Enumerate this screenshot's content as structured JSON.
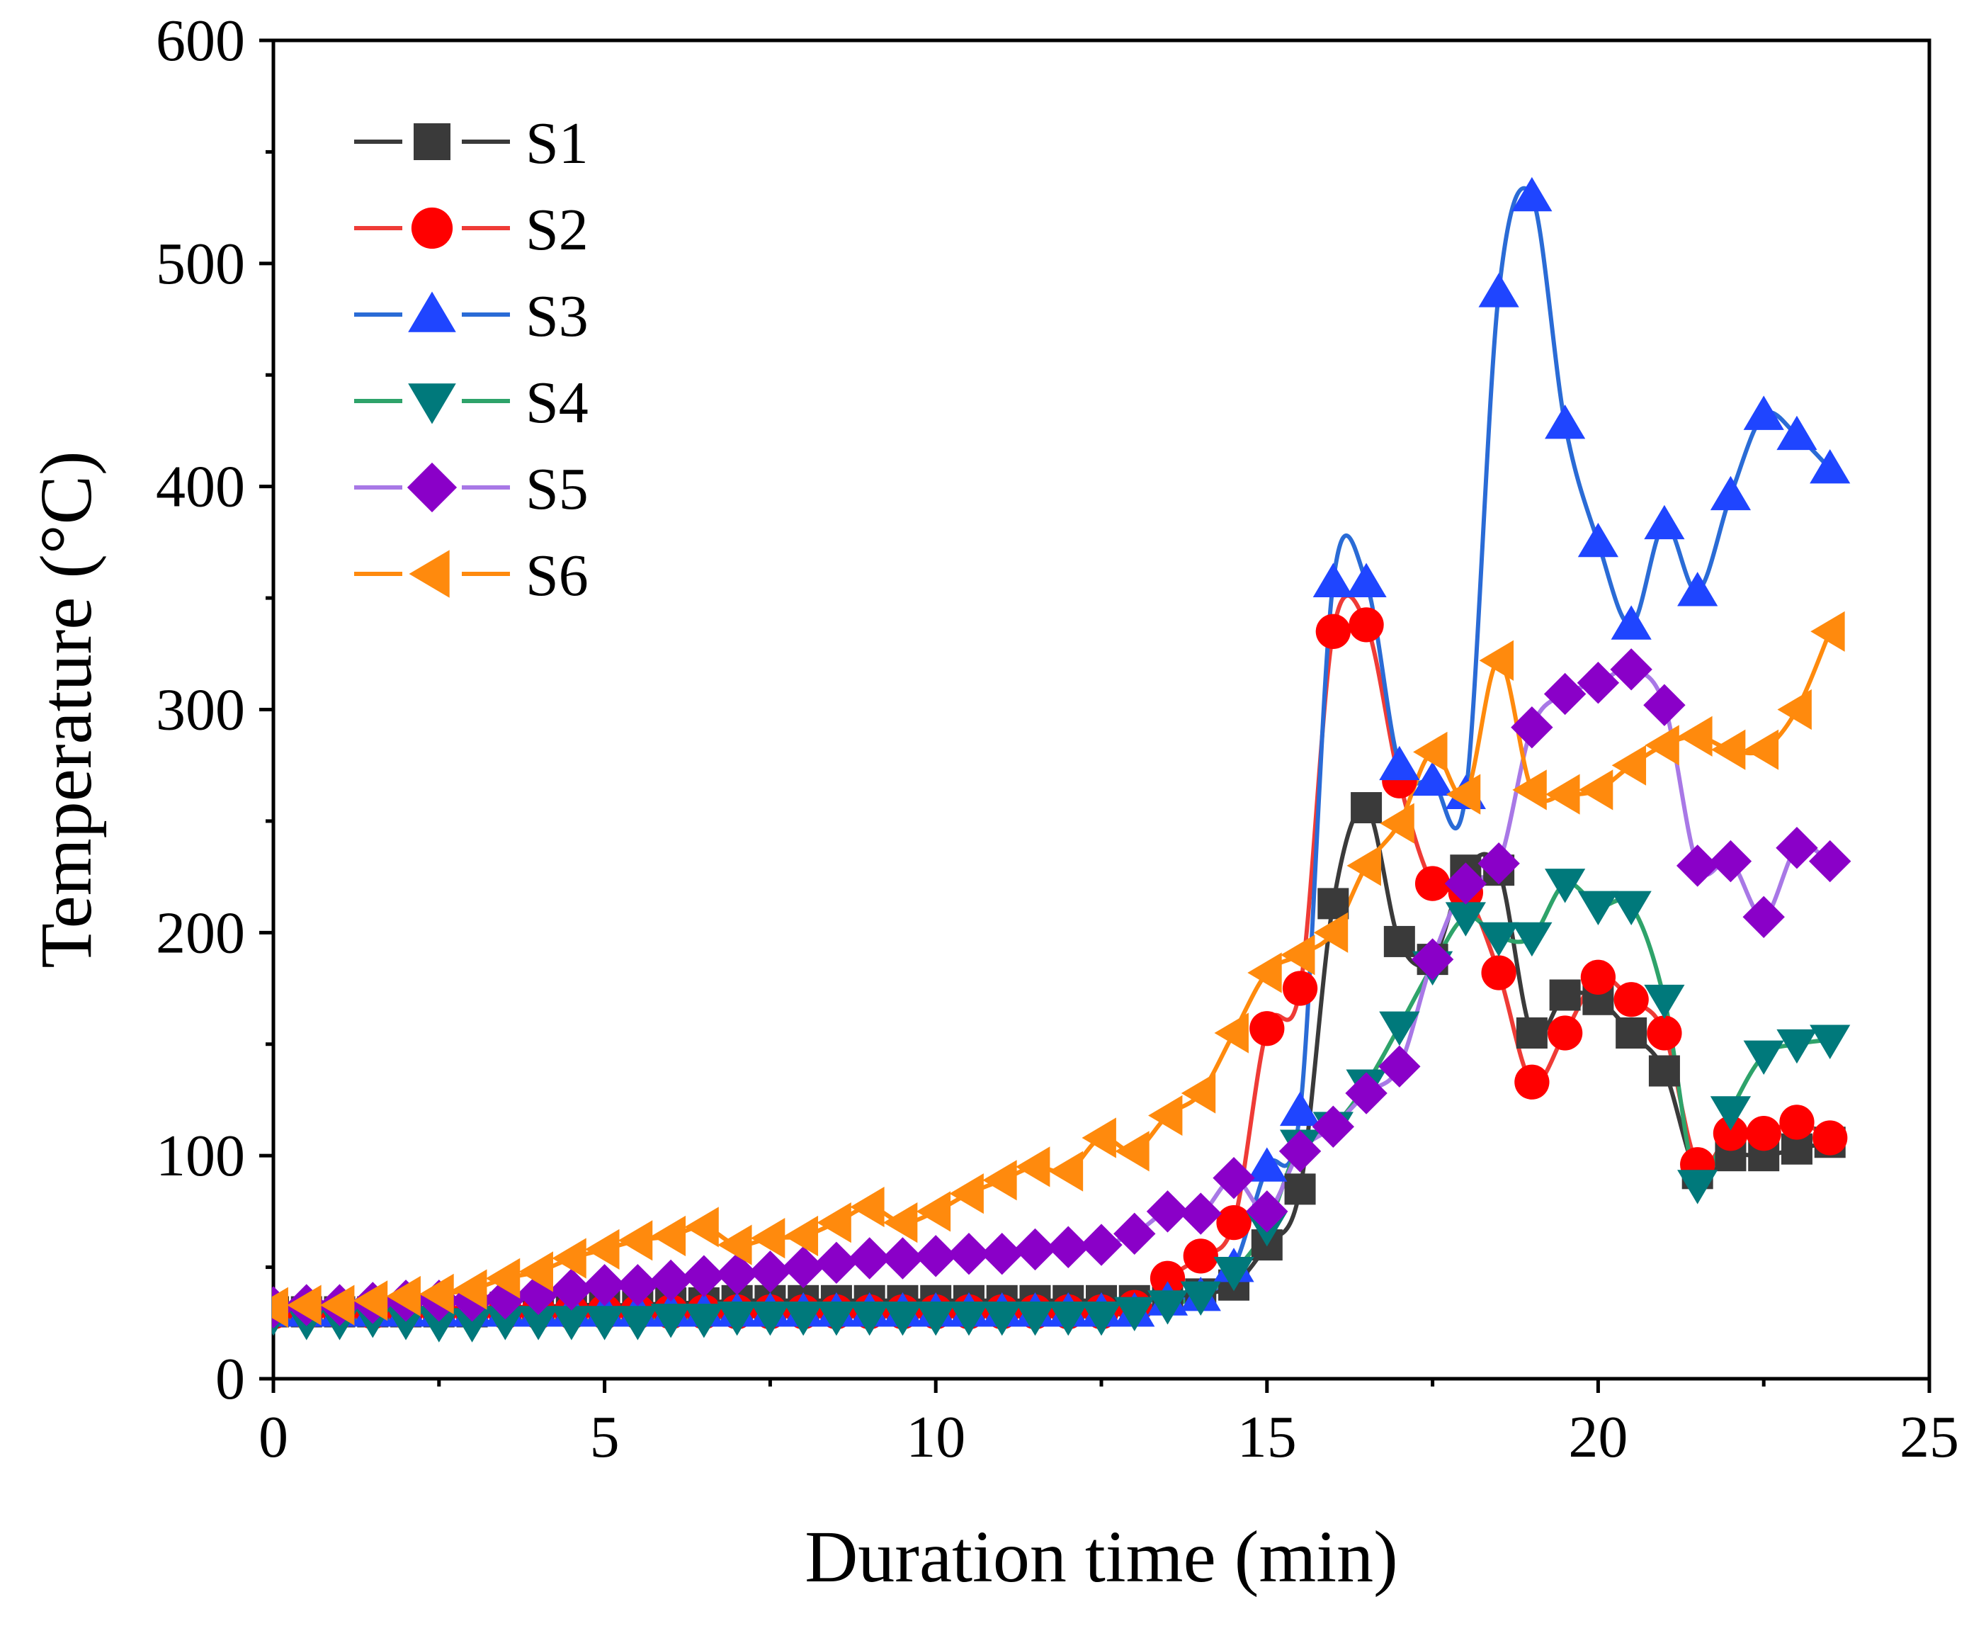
{
  "chart_data": {
    "type": "line",
    "xlabel": "Duration time (min)",
    "ylabel": "Temperature (°C)",
    "xlim": [
      0,
      25
    ],
    "ylim": [
      0,
      600
    ],
    "xticks": [
      0,
      5,
      10,
      15,
      20,
      25
    ],
    "yticks": [
      0,
      100,
      200,
      300,
      400,
      500,
      600
    ],
    "xtick_labels": [
      "0",
      "5",
      "10",
      "15",
      "20",
      "25"
    ],
    "ytick_labels": [
      "0",
      "100",
      "200",
      "300",
      "400",
      "500",
      "600"
    ],
    "legend_position": "top-left",
    "grid": false,
    "series": [
      {
        "name": "S1",
        "color": "#3a3a3a",
        "marker": "square",
        "x": [
          0,
          0.5,
          1,
          1.5,
          2,
          2.5,
          3,
          3.5,
          4,
          4.5,
          5,
          5.5,
          6,
          6.5,
          7,
          7.5,
          8,
          8.5,
          9,
          9.5,
          10,
          10.5,
          11,
          11.5,
          12,
          12.5,
          13,
          13.5,
          14,
          14.5,
          15,
          15.5,
          16,
          16.5,
          17,
          17.5,
          18,
          18.5,
          19,
          19.5,
          20,
          20.5,
          21,
          21.5,
          22,
          22.5,
          23,
          23.5
        ],
        "y": [
          30,
          30,
          30,
          30,
          30,
          30,
          30,
          32,
          32,
          33,
          33,
          33,
          34,
          34,
          35,
          35,
          35,
          35,
          35,
          35,
          35,
          35,
          35,
          35,
          35,
          35,
          35,
          36,
          38,
          42,
          60,
          85,
          213,
          256,
          196,
          188,
          228,
          228,
          155,
          172,
          170,
          155,
          138,
          92,
          100,
          100,
          103,
          106
        ]
      },
      {
        "name": "S2",
        "color": "#ff0000",
        "marker": "circle",
        "x": [
          0,
          0.5,
          1,
          1.5,
          2,
          2.5,
          3,
          3.5,
          4,
          4.5,
          5,
          5.5,
          6,
          6.5,
          7,
          7.5,
          8,
          8.5,
          9,
          9.5,
          10,
          10.5,
          11,
          11.5,
          12,
          12.5,
          13,
          13.5,
          14,
          14.5,
          15,
          15.5,
          16,
          16.5,
          17,
          17.5,
          18,
          18.5,
          19,
          19.5,
          20,
          20.5,
          21,
          21.5,
          22,
          22.5,
          23,
          23.5
        ],
        "y": [
          30,
          30,
          30,
          30,
          30,
          30,
          30,
          30,
          30,
          30,
          30,
          30,
          30,
          30,
          30,
          30,
          30,
          30,
          30,
          30,
          30,
          30,
          30,
          30,
          30,
          30,
          32,
          45,
          55,
          70,
          157,
          175,
          335,
          338,
          268,
          222,
          218,
          182,
          133,
          155,
          180,
          170,
          155,
          96,
          110,
          110,
          115,
          108
        ]
      },
      {
        "name": "S3",
        "color": "#1f45ff",
        "marker": "triangle-up",
        "x": [
          0,
          0.5,
          1,
          1.5,
          2,
          2.5,
          3,
          3.5,
          4,
          4.5,
          5,
          5.5,
          6,
          6.5,
          7,
          7.5,
          8,
          8.5,
          9,
          9.5,
          10,
          10.5,
          11,
          11.5,
          12,
          12.5,
          13,
          13.5,
          14,
          14.5,
          15,
          15.5,
          16,
          16.5,
          17,
          17.5,
          18,
          18.5,
          19,
          19.5,
          20,
          20.5,
          21,
          21.5,
          22,
          22.5,
          23,
          23.5
        ],
        "y": [
          30,
          30,
          30,
          30,
          30,
          30,
          30,
          30,
          30,
          30,
          30,
          30,
          30,
          30,
          30,
          30,
          30,
          30,
          30,
          30,
          30,
          30,
          30,
          30,
          30,
          30,
          30,
          35,
          37,
          50,
          95,
          120,
          357,
          357,
          275,
          268,
          262,
          487,
          530,
          428,
          375,
          338,
          383,
          353,
          396,
          432,
          423,
          408
        ]
      },
      {
        "name": "S4",
        "color": "#00797b",
        "marker": "triangle-down",
        "x": [
          0,
          0.5,
          1,
          1.5,
          2,
          2.5,
          3,
          3.5,
          4,
          4.5,
          5,
          5.5,
          6,
          6.5,
          7,
          7.5,
          8,
          8.5,
          9,
          9.5,
          10,
          10.5,
          11,
          11.5,
          12,
          12.5,
          13,
          13.5,
          14,
          14.5,
          15,
          15.5,
          16,
          16.5,
          17,
          17.5,
          18,
          18.5,
          19,
          19.5,
          20,
          20.5,
          21,
          21.5,
          22,
          22.5,
          23,
          23.5
        ],
        "y": [
          28,
          26,
          26,
          27,
          26,
          25,
          25,
          26,
          26,
          26,
          26,
          26,
          27,
          27,
          28,
          28,
          28,
          28,
          28,
          28,
          28,
          28,
          28,
          28,
          28,
          28,
          30,
          33,
          37,
          48,
          68,
          105,
          113,
          132,
          158,
          185,
          207,
          198,
          198,
          222,
          212,
          212,
          170,
          87,
          120,
          145,
          150,
          152
        ]
      },
      {
        "name": "S5",
        "color": "#8a00c8",
        "marker": "diamond",
        "x": [
          0,
          0.5,
          1,
          1.5,
          2,
          2.5,
          3,
          3.5,
          4,
          4.5,
          5,
          5.5,
          6,
          6.5,
          7,
          7.5,
          8,
          8.5,
          9,
          9.5,
          10,
          10.5,
          11,
          11.5,
          12,
          12.5,
          13,
          13.5,
          14,
          14.5,
          15,
          15.5,
          16,
          16.5,
          17,
          17.5,
          18,
          18.5,
          19,
          19.5,
          20,
          20.5,
          21,
          21.5,
          22,
          22.5,
          23,
          23.5
        ],
        "y": [
          32,
          33,
          33,
          34,
          35,
          35,
          35,
          36,
          38,
          40,
          42,
          42,
          44,
          46,
          47,
          48,
          50,
          52,
          54,
          54,
          55,
          56,
          56,
          58,
          59,
          60,
          65,
          75,
          74,
          90,
          75,
          102,
          113,
          128,
          140,
          188,
          222,
          231,
          292,
          307,
          312,
          318,
          302,
          230,
          232,
          207,
          238,
          232
        ]
      },
      {
        "name": "S6",
        "color": "#ff8a0d",
        "marker": "triangle-left",
        "x": [
          0,
          0.5,
          1,
          1.5,
          2,
          2.5,
          3,
          3.5,
          4,
          4.5,
          5,
          5.5,
          6,
          6.5,
          7,
          7.5,
          8,
          8.5,
          9,
          9.5,
          10,
          10.5,
          11,
          11.5,
          12,
          12.5,
          13,
          13.5,
          14,
          14.5,
          15,
          15.5,
          16,
          16.5,
          17,
          17.5,
          18,
          18.5,
          19,
          19.5,
          20,
          20.5,
          21,
          21.5,
          22,
          22.5,
          23,
          23.5
        ],
        "y": [
          32,
          33,
          33,
          35,
          37,
          38,
          40,
          45,
          48,
          54,
          58,
          62,
          64,
          68,
          60,
          63,
          64,
          70,
          77,
          70,
          75,
          83,
          89,
          95,
          93,
          108,
          102,
          118,
          128,
          155,
          182,
          190,
          200,
          230,
          249,
          281,
          262,
          322,
          264,
          262,
          264,
          275,
          284,
          288,
          282,
          282,
          300,
          335
        ]
      }
    ]
  }
}
